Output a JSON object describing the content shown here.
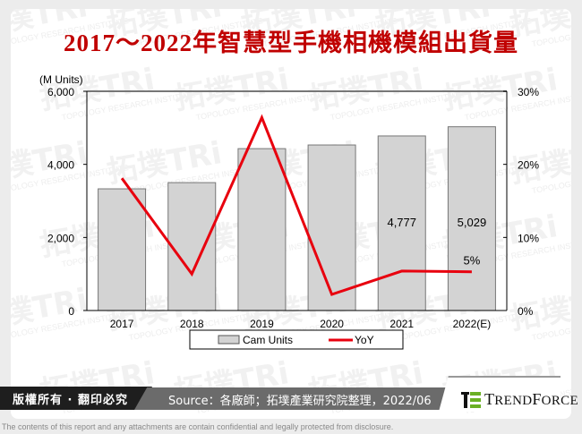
{
  "title": "2017～2022年智慧型手機相機模組出貨量",
  "chart_data": {
    "type": "bar",
    "title": "2017～2022年智慧型手機相機模組出貨量",
    "ylabel": "(M Units)",
    "y2label": "",
    "categories": [
      "2017",
      "2018",
      "2019",
      "2020",
      "2021",
      "2022(E)"
    ],
    "series": [
      {
        "name": "Cam Units",
        "type": "bar",
        "axis": "left",
        "color": "#d3d3d3",
        "values": [
          3330,
          3500,
          4430,
          4530,
          4777,
          5029
        ]
      },
      {
        "name": "YoY",
        "type": "line",
        "axis": "right",
        "color": "#e8000e",
        "values": [
          18.1,
          5.0,
          26.4,
          2.2,
          5.4,
          5.3
        ]
      }
    ],
    "ylim": [
      0,
      6000
    ],
    "yticks": [
      "0",
      "2,000",
      "4,000",
      "6,000"
    ],
    "y2lim": [
      0,
      30
    ],
    "y2ticks": [
      "0%",
      "10%",
      "20%",
      "30%"
    ],
    "data_labels": [
      {
        "category": "2021",
        "series": "Cam Units",
        "text": "4,777"
      },
      {
        "category": "2022(E)",
        "series": "Cam Units",
        "text": "5,029"
      },
      {
        "category": "2022(E)",
        "series": "YoY",
        "text": "5%"
      }
    ],
    "legend": {
      "position": "bottom",
      "items": [
        "Cam Units",
        "YoY"
      ]
    },
    "grid": false
  },
  "footer": {
    "copyright": "版權所有 · 翻印必究",
    "source": "Source：各廠師；拓墣產業研究院整理，2022/06",
    "brand": "TrendForce",
    "disclaimer": "The contents of this report and any attachments are contain confidential and legally protected from disclosure."
  },
  "watermark": {
    "text": "拓墣TRi",
    "subtext": "TOPOLOGY RESEARCH INSTITUTE"
  },
  "colors": {
    "title": "#c00000",
    "bar": "#d3d3d3",
    "line": "#e8000e",
    "footer_dark": "#1e1e1e",
    "footer_gray": "#6b6b6b"
  }
}
